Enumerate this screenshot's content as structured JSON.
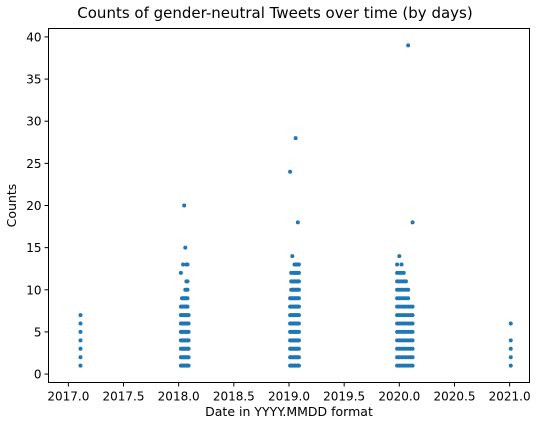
{
  "chart_data": {
    "type": "scatter",
    "title": "Counts of gender-neutral Tweets over time (by days)",
    "xlabel": "Date in YYYY.MMDD format",
    "ylabel": "Counts",
    "xlim": [
      2016.82,
      2021.18
    ],
    "ylim": [
      -1.0,
      41.0
    ],
    "xticks": [
      2017.0,
      2017.5,
      2018.0,
      2018.5,
      2019.0,
      2019.5,
      2020.0,
      2020.5,
      2021.0
    ],
    "xtick_labels": [
      "2017.0",
      "2017.5",
      "2018.0",
      "2018.5",
      "2019.0",
      "2019.5",
      "2020.0",
      "2020.5",
      "2021.0"
    ],
    "yticks": [
      0,
      5,
      10,
      15,
      20,
      25,
      30,
      35,
      40
    ],
    "ytick_labels": [
      "0",
      "5",
      "10",
      "15",
      "20",
      "25",
      "30",
      "35",
      "40"
    ],
    "grid": false,
    "color": "#1f77b4",
    "points": [
      [
        2017.11,
        1
      ],
      [
        2017.11,
        2
      ],
      [
        2017.11,
        3
      ],
      [
        2017.11,
        4
      ],
      [
        2017.11,
        5
      ],
      [
        2017.11,
        6
      ],
      [
        2017.11,
        7
      ],
      [
        2018.02,
        1
      ],
      [
        2018.02,
        2
      ],
      [
        2018.02,
        3
      ],
      [
        2018.02,
        4
      ],
      [
        2018.02,
        5
      ],
      [
        2018.02,
        6
      ],
      [
        2018.02,
        7
      ],
      [
        2018.02,
        8
      ],
      [
        2018.02,
        12
      ],
      [
        2018.03,
        1
      ],
      [
        2018.03,
        2
      ],
      [
        2018.03,
        3
      ],
      [
        2018.03,
        4
      ],
      [
        2018.03,
        5
      ],
      [
        2018.03,
        6
      ],
      [
        2018.03,
        7
      ],
      [
        2018.03,
        8
      ],
      [
        2018.03,
        9
      ],
      [
        2018.04,
        1
      ],
      [
        2018.04,
        2
      ],
      [
        2018.04,
        3
      ],
      [
        2018.04,
        4
      ],
      [
        2018.04,
        5
      ],
      [
        2018.04,
        6
      ],
      [
        2018.04,
        7
      ],
      [
        2018.04,
        8
      ],
      [
        2018.04,
        9
      ],
      [
        2018.04,
        13
      ],
      [
        2018.05,
        1
      ],
      [
        2018.05,
        2
      ],
      [
        2018.05,
        3
      ],
      [
        2018.05,
        4
      ],
      [
        2018.05,
        5
      ],
      [
        2018.05,
        6
      ],
      [
        2018.05,
        7
      ],
      [
        2018.05,
        8
      ],
      [
        2018.05,
        9
      ],
      [
        2018.05,
        20
      ],
      [
        2018.06,
        1
      ],
      [
        2018.06,
        2
      ],
      [
        2018.06,
        3
      ],
      [
        2018.06,
        4
      ],
      [
        2018.06,
        5
      ],
      [
        2018.06,
        6
      ],
      [
        2018.06,
        7
      ],
      [
        2018.06,
        8
      ],
      [
        2018.06,
        9
      ],
      [
        2018.06,
        10
      ],
      [
        2018.06,
        15
      ],
      [
        2018.07,
        1
      ],
      [
        2018.07,
        2
      ],
      [
        2018.07,
        3
      ],
      [
        2018.07,
        4
      ],
      [
        2018.07,
        5
      ],
      [
        2018.07,
        6
      ],
      [
        2018.07,
        7
      ],
      [
        2018.07,
        8
      ],
      [
        2018.07,
        9
      ],
      [
        2018.07,
        10
      ],
      [
        2018.07,
        11
      ],
      [
        2018.07,
        13
      ],
      [
        2018.08,
        1
      ],
      [
        2018.08,
        2
      ],
      [
        2018.08,
        3
      ],
      [
        2018.08,
        4
      ],
      [
        2018.08,
        5
      ],
      [
        2018.08,
        6
      ],
      [
        2018.08,
        7
      ],
      [
        2018.08,
        8
      ],
      [
        2018.08,
        9
      ],
      [
        2018.08,
        10
      ],
      [
        2018.08,
        11
      ],
      [
        2018.08,
        13
      ],
      [
        2018.09,
        1
      ],
      [
        2018.09,
        2
      ],
      [
        2018.09,
        3
      ],
      [
        2018.09,
        4
      ],
      [
        2018.09,
        5
      ],
      [
        2018.09,
        6
      ],
      [
        2018.09,
        7
      ],
      [
        2019.01,
        1
      ],
      [
        2019.01,
        2
      ],
      [
        2019.01,
        3
      ],
      [
        2019.01,
        4
      ],
      [
        2019.01,
        5
      ],
      [
        2019.01,
        6
      ],
      [
        2019.01,
        7
      ],
      [
        2019.01,
        8
      ],
      [
        2019.01,
        9
      ],
      [
        2019.01,
        24
      ],
      [
        2019.02,
        1
      ],
      [
        2019.02,
        2
      ],
      [
        2019.02,
        3
      ],
      [
        2019.02,
        4
      ],
      [
        2019.02,
        5
      ],
      [
        2019.02,
        6
      ],
      [
        2019.02,
        7
      ],
      [
        2019.02,
        8
      ],
      [
        2019.02,
        9
      ],
      [
        2019.02,
        10
      ],
      [
        2019.02,
        11
      ],
      [
        2019.02,
        12
      ],
      [
        2019.03,
        1
      ],
      [
        2019.03,
        2
      ],
      [
        2019.03,
        3
      ],
      [
        2019.03,
        4
      ],
      [
        2019.03,
        5
      ],
      [
        2019.03,
        6
      ],
      [
        2019.03,
        7
      ],
      [
        2019.03,
        8
      ],
      [
        2019.03,
        9
      ],
      [
        2019.03,
        10
      ],
      [
        2019.03,
        11
      ],
      [
        2019.03,
        14
      ],
      [
        2019.04,
        1
      ],
      [
        2019.04,
        2
      ],
      [
        2019.04,
        3
      ],
      [
        2019.04,
        4
      ],
      [
        2019.04,
        5
      ],
      [
        2019.04,
        6
      ],
      [
        2019.04,
        7
      ],
      [
        2019.04,
        8
      ],
      [
        2019.04,
        9
      ],
      [
        2019.04,
        10
      ],
      [
        2019.04,
        11
      ],
      [
        2019.04,
        12
      ],
      [
        2019.05,
        1
      ],
      [
        2019.05,
        2
      ],
      [
        2019.05,
        3
      ],
      [
        2019.05,
        4
      ],
      [
        2019.05,
        5
      ],
      [
        2019.05,
        6
      ],
      [
        2019.05,
        7
      ],
      [
        2019.05,
        8
      ],
      [
        2019.05,
        9
      ],
      [
        2019.05,
        10
      ],
      [
        2019.05,
        11
      ],
      [
        2019.05,
        12
      ],
      [
        2019.05,
        13
      ],
      [
        2019.06,
        1
      ],
      [
        2019.06,
        2
      ],
      [
        2019.06,
        3
      ],
      [
        2019.06,
        4
      ],
      [
        2019.06,
        5
      ],
      [
        2019.06,
        6
      ],
      [
        2019.06,
        7
      ],
      [
        2019.06,
        8
      ],
      [
        2019.06,
        9
      ],
      [
        2019.06,
        10
      ],
      [
        2019.06,
        11
      ],
      [
        2019.06,
        12
      ],
      [
        2019.06,
        13
      ],
      [
        2019.06,
        28
      ],
      [
        2019.07,
        1
      ],
      [
        2019.07,
        2
      ],
      [
        2019.07,
        3
      ],
      [
        2019.07,
        4
      ],
      [
        2019.07,
        5
      ],
      [
        2019.07,
        6
      ],
      [
        2019.07,
        7
      ],
      [
        2019.07,
        8
      ],
      [
        2019.07,
        9
      ],
      [
        2019.07,
        10
      ],
      [
        2019.07,
        11
      ],
      [
        2019.07,
        12
      ],
      [
        2019.07,
        13
      ],
      [
        2019.08,
        1
      ],
      [
        2019.08,
        2
      ],
      [
        2019.08,
        3
      ],
      [
        2019.08,
        4
      ],
      [
        2019.08,
        5
      ],
      [
        2019.08,
        6
      ],
      [
        2019.08,
        7
      ],
      [
        2019.08,
        8
      ],
      [
        2019.08,
        9
      ],
      [
        2019.08,
        10
      ],
      [
        2019.08,
        11
      ],
      [
        2019.08,
        12
      ],
      [
        2019.08,
        13
      ],
      [
        2019.08,
        18
      ],
      [
        2019.09,
        1
      ],
      [
        2019.09,
        2
      ],
      [
        2019.09,
        3
      ],
      [
        2019.09,
        4
      ],
      [
        2019.09,
        5
      ],
      [
        2019.09,
        6
      ],
      [
        2019.09,
        7
      ],
      [
        2019.09,
        8
      ],
      [
        2019.09,
        9
      ],
      [
        2019.09,
        10
      ],
      [
        2019.09,
        11
      ],
      [
        2019.09,
        12
      ],
      [
        2019.09,
        13
      ],
      [
        2019.98,
        1
      ],
      [
        2019.98,
        2
      ],
      [
        2019.98,
        3
      ],
      [
        2019.98,
        4
      ],
      [
        2019.98,
        5
      ],
      [
        2019.98,
        6
      ],
      [
        2019.98,
        7
      ],
      [
        2019.98,
        8
      ],
      [
        2019.98,
        9
      ],
      [
        2019.98,
        10
      ],
      [
        2019.98,
        11
      ],
      [
        2019.98,
        12
      ],
      [
        2019.98,
        13
      ],
      [
        2020.0,
        1
      ],
      [
        2020.0,
        2
      ],
      [
        2020.0,
        3
      ],
      [
        2020.0,
        4
      ],
      [
        2020.0,
        5
      ],
      [
        2020.0,
        6
      ],
      [
        2020.0,
        7
      ],
      [
        2020.0,
        8
      ],
      [
        2020.0,
        9
      ],
      [
        2020.0,
        10
      ],
      [
        2020.0,
        11
      ],
      [
        2020.0,
        12
      ],
      [
        2020.0,
        14
      ],
      [
        2020.02,
        1
      ],
      [
        2020.02,
        2
      ],
      [
        2020.02,
        3
      ],
      [
        2020.02,
        4
      ],
      [
        2020.02,
        5
      ],
      [
        2020.02,
        6
      ],
      [
        2020.02,
        7
      ],
      [
        2020.02,
        8
      ],
      [
        2020.02,
        9
      ],
      [
        2020.02,
        10
      ],
      [
        2020.02,
        11
      ],
      [
        2020.02,
        12
      ],
      [
        2020.02,
        13
      ],
      [
        2020.04,
        1
      ],
      [
        2020.04,
        2
      ],
      [
        2020.04,
        3
      ],
      [
        2020.04,
        4
      ],
      [
        2020.04,
        5
      ],
      [
        2020.04,
        6
      ],
      [
        2020.04,
        7
      ],
      [
        2020.04,
        8
      ],
      [
        2020.04,
        9
      ],
      [
        2020.04,
        10
      ],
      [
        2020.04,
        11
      ],
      [
        2020.04,
        12
      ],
      [
        2020.06,
        1
      ],
      [
        2020.06,
        2
      ],
      [
        2020.06,
        3
      ],
      [
        2020.06,
        4
      ],
      [
        2020.06,
        5
      ],
      [
        2020.06,
        6
      ],
      [
        2020.06,
        7
      ],
      [
        2020.06,
        8
      ],
      [
        2020.06,
        9
      ],
      [
        2020.06,
        10
      ],
      [
        2020.06,
        11
      ],
      [
        2020.08,
        1
      ],
      [
        2020.08,
        2
      ],
      [
        2020.08,
        3
      ],
      [
        2020.08,
        4
      ],
      [
        2020.08,
        5
      ],
      [
        2020.08,
        6
      ],
      [
        2020.08,
        7
      ],
      [
        2020.08,
        8
      ],
      [
        2020.08,
        9
      ],
      [
        2020.08,
        10
      ],
      [
        2020.08,
        39
      ],
      [
        2020.1,
        1
      ],
      [
        2020.1,
        2
      ],
      [
        2020.1,
        3
      ],
      [
        2020.1,
        4
      ],
      [
        2020.1,
        5
      ],
      [
        2020.1,
        6
      ],
      [
        2020.1,
        7
      ],
      [
        2020.1,
        8
      ],
      [
        2020.12,
        1
      ],
      [
        2020.12,
        2
      ],
      [
        2020.12,
        3
      ],
      [
        2020.12,
        4
      ],
      [
        2020.12,
        5
      ],
      [
        2020.12,
        6
      ],
      [
        2020.12,
        7
      ],
      [
        2020.12,
        8
      ],
      [
        2020.12,
        18
      ],
      [
        2021.01,
        1
      ],
      [
        2021.01,
        2
      ],
      [
        2021.01,
        3
      ],
      [
        2021.01,
        4
      ],
      [
        2021.01,
        6
      ]
    ]
  }
}
